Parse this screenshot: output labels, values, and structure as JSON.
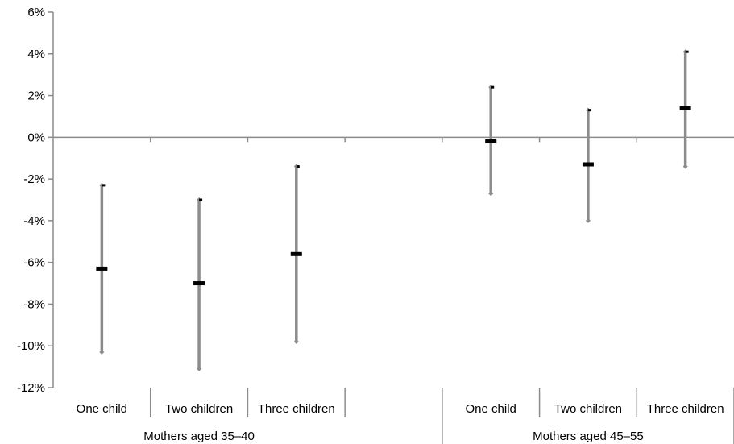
{
  "chart_data": {
    "type": "error-bar",
    "title": "",
    "xlabel": "",
    "ylabel": "",
    "ylim": [
      -12,
      6
    ],
    "y_ticks": [
      "-12%",
      "-10%",
      "-8%",
      "-6%",
      "-4%",
      "-2%",
      "0%",
      "2%",
      "4%",
      "6%"
    ],
    "y_tick_values": [
      -12,
      -10,
      -8,
      -6,
      -4,
      -2,
      0,
      2,
      4,
      6
    ],
    "grid": false,
    "groups": [
      {
        "label": "Mothers aged 35–40",
        "categories": [
          {
            "label": "One child",
            "estimate": -6.3,
            "low": -10.3,
            "high": -2.3
          },
          {
            "label": "Two children",
            "estimate": -7.0,
            "low": -11.1,
            "high": -3.0
          },
          {
            "label": "Three children",
            "estimate": -5.6,
            "low": -9.8,
            "high": -1.4
          },
          {
            "label": "",
            "estimate": null,
            "low": null,
            "high": null
          }
        ]
      },
      {
        "label": "Mothers aged 45–55",
        "categories": [
          {
            "label": "One child",
            "estimate": -0.2,
            "low": -2.7,
            "high": 2.4
          },
          {
            "label": "Two children",
            "estimate": -1.3,
            "low": -4.0,
            "high": 1.3
          },
          {
            "label": "Three children",
            "estimate": 1.4,
            "low": -1.4,
            "high": 4.1
          }
        ]
      }
    ],
    "colors": {
      "error_bar": "#8c8c8c",
      "estimate": "#000000",
      "axis": "#8c8c8c"
    }
  }
}
